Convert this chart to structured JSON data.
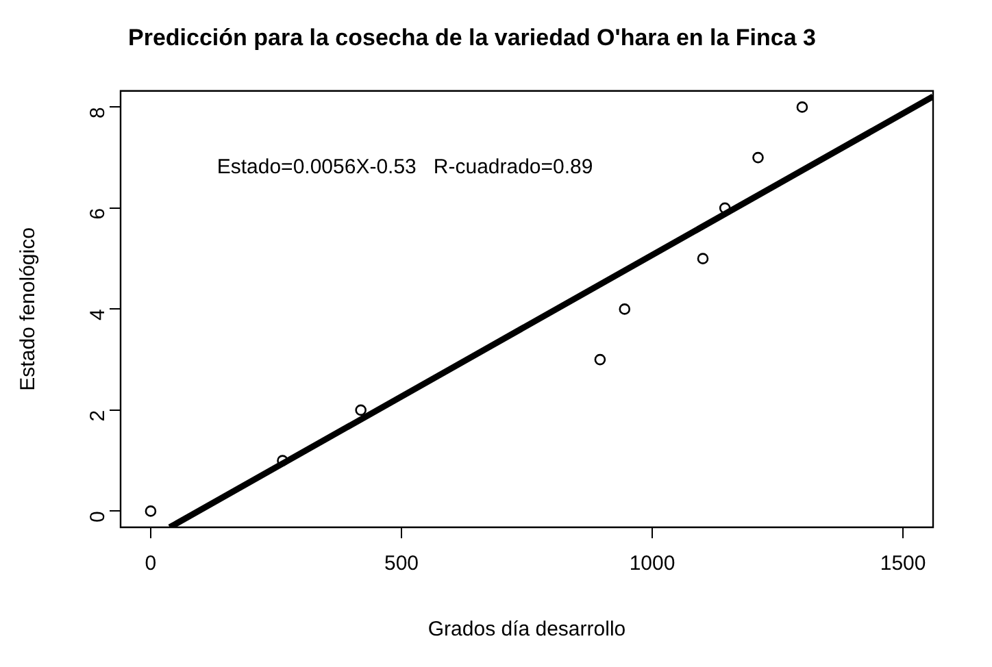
{
  "chart_data": {
    "type": "scatter",
    "title": "Predicción para la cosecha de la variedad O'hara en la Finca 3",
    "xlabel": "Grados día desarrollo",
    "ylabel": "Estado fenológico",
    "x": [
      0,
      263,
      419,
      896,
      945,
      1101,
      1145,
      1211,
      1299
    ],
    "series": [
      {
        "color": "#000000",
        "values": [
          0,
          1,
          2,
          3,
          4,
          5,
          6,
          7,
          8
        ]
      },
      {
        "type": "line",
        "marker": "none",
        "color": "#000000",
        "x": [
          38,
          1560
        ],
        "values": [
          -0.32,
          8.21
        ]
      }
    ],
    "xlim": [
      -60,
      1560
    ],
    "xticks": [
      0,
      500,
      1000,
      1500
    ],
    "ylim": [
      -0.32,
      8.32
    ],
    "yticks": [
      0,
      2,
      4,
      6,
      8
    ],
    "marker": "circle",
    "line_style": "solid",
    "legend": false,
    "annotations": [
      "Estado=0.0056X-0.53   R-cuadrado=0.89"
    ]
  }
}
